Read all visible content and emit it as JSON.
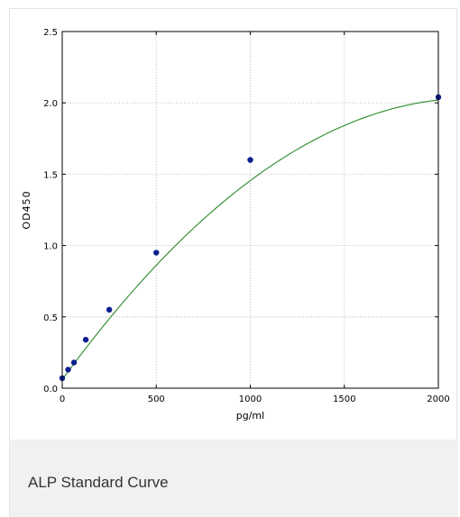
{
  "caption": {
    "title": "ALP Standard Curve"
  },
  "chart_data": {
    "type": "scatter",
    "title": "",
    "xlabel": "pg/ml",
    "ylabel": "OD450",
    "xlim": [
      0,
      2000
    ],
    "ylim": [
      0,
      2.5
    ],
    "xticks": [
      0,
      500,
      1000,
      1500,
      2000
    ],
    "yticks": [
      0.0,
      0.5,
      1.0,
      1.5,
      2.0,
      2.5
    ],
    "xtick_labels": [
      "0",
      "500",
      "1000",
      "1500",
      "2000"
    ],
    "ytick_labels": [
      "0.0",
      "0.5",
      "1.0",
      "1.5",
      "2.0",
      "2.5"
    ],
    "grid": true,
    "series": [
      {
        "x": [
          0,
          31.25,
          62.5,
          125,
          250,
          500,
          1000,
          2000
        ],
        "y": [
          0.07,
          0.13,
          0.18,
          0.34,
          0.55,
          0.95,
          1.6,
          2.04
        ],
        "marker_color": "#0b1f8f"
      }
    ],
    "fit_curve": {
      "type": "polynomial",
      "coefficients": [
        0.06,
        0.00181,
        -4.15e-07
      ],
      "color": "#2a8a2a"
    }
  }
}
